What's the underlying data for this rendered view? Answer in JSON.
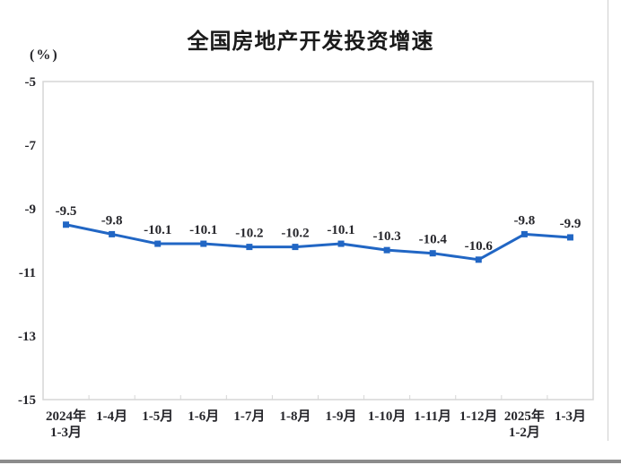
{
  "chart_data": {
    "type": "line",
    "title": "全国房地产开发投资增速",
    "unit_label": "(%)",
    "categories": [
      "2024年\n1-3月",
      "1-4月",
      "1-5月",
      "1-6月",
      "1-7月",
      "1-8月",
      "1-9月",
      "1-10月",
      "1-11月",
      "1-12月",
      "2025年\n1-2月",
      "1-3月"
    ],
    "values": [
      -9.5,
      -9.8,
      -10.1,
      -10.1,
      -10.2,
      -10.2,
      -10.1,
      -10.3,
      -10.4,
      -10.6,
      -9.8,
      -9.9
    ],
    "data_labels": [
      "-9.5",
      "-9.8",
      "-10.1",
      "-10.1",
      "-10.2",
      "-10.2",
      "-10.1",
      "-10.3",
      "-10.4",
      "-10.6",
      "-9.8",
      "-9.9"
    ],
    "yticks": [
      "-5",
      "-7",
      "-9",
      "-11",
      "-13",
      "-15"
    ],
    "ylim": [
      -15,
      -5
    ],
    "grid": false,
    "legend": null,
    "marker": "square",
    "line_color": "#2166c4",
    "text_color": "#26262b",
    "axis_color": "#d6d6d6"
  },
  "page": {
    "background": "#ffffff",
    "right_border_color": "#cfcfcf",
    "bottom_bar_color": "#8c8c8c"
  }
}
